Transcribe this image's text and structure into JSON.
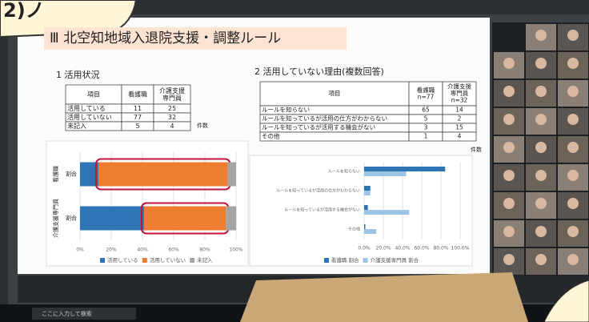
{
  "callout": "2)ノ",
  "slide": {
    "title": "Ⅲ 北空知地域入退院支援・調整ルール",
    "section1": {
      "heading": "1 活用状況",
      "table": {
        "header": [
          "項目",
          "看護職",
          [
            "介護支援",
            "専門員"
          ]
        ],
        "rows": [
          [
            "活用している",
            11,
            25
          ],
          [
            "活用していない",
            77,
            32
          ],
          [
            "未記入",
            5,
            4
          ]
        ]
      },
      "unit": "件数"
    },
    "section2": {
      "heading": "2 活用していない理由(複数回答)",
      "table": {
        "header": [
          "項目",
          [
            "看護職",
            "n=77"
          ],
          [
            "介護支援",
            "専門員",
            "n=32"
          ]
        ],
        "rows": [
          [
            "ルールを知らない",
            65,
            14
          ],
          [
            "ルールを知っているが活用の仕方がわからない",
            5,
            2
          ],
          [
            "ルールを知っているが活用する機会がない",
            3,
            15
          ],
          [
            "その他",
            1,
            4
          ]
        ]
      },
      "unit": "件数"
    }
  },
  "chart_data": [
    {
      "type": "stacked-bar",
      "categories": [
        "看護職",
        "介護支援専門員"
      ],
      "bar_label": "割合",
      "series": [
        {
          "name": "活用している",
          "color": "#2e75b6",
          "values": [
            11.8,
            41.0
          ]
        },
        {
          "name": "活用していない",
          "color": "#ed7d31",
          "values": [
            82.8,
            52.5
          ]
        },
        {
          "name": "未記入",
          "color": "#a5a5a5",
          "values": [
            5.4,
            6.6
          ]
        }
      ],
      "xlim": [
        0,
        100
      ],
      "xticks": [
        {
          "value": 0,
          "label": "0%"
        },
        {
          "value": 20,
          "label": "20%"
        },
        {
          "value": 40,
          "label": "40%"
        },
        {
          "value": 60,
          "label": "60%"
        },
        {
          "value": 80,
          "label": "80%"
        },
        {
          "value": 100,
          "label": "100%"
        }
      ],
      "grid": true
    },
    {
      "type": "grouped-bar",
      "categories": [
        "ルールを知らない",
        "ルールを知っているが活用の仕方がわからない",
        "ルールを知っているが活用する機会がない",
        "その他"
      ],
      "series": [
        {
          "name": "看護職 割合",
          "color": "#2e75b6",
          "values": [
            84.4,
            6.5,
            3.9,
            1.3
          ]
        },
        {
          "name": "介護支援専門員 割合",
          "color": "#9dc3e6",
          "values": [
            43.8,
            6.3,
            46.9,
            12.5
          ]
        }
      ],
      "xlim": [
        0,
        100
      ],
      "xticks": [
        {
          "value": 0,
          "label": "0.0%"
        },
        {
          "value": 20,
          "label": "20.0%"
        },
        {
          "value": 40,
          "label": "40.0%"
        },
        {
          "value": 60,
          "label": "60.0%"
        },
        {
          "value": 80,
          "label": "80.0%"
        },
        {
          "value": 100,
          "label": "100.0%"
        }
      ],
      "grid": true
    }
  ],
  "taskbar": {
    "search": "ここに入力して検索"
  }
}
